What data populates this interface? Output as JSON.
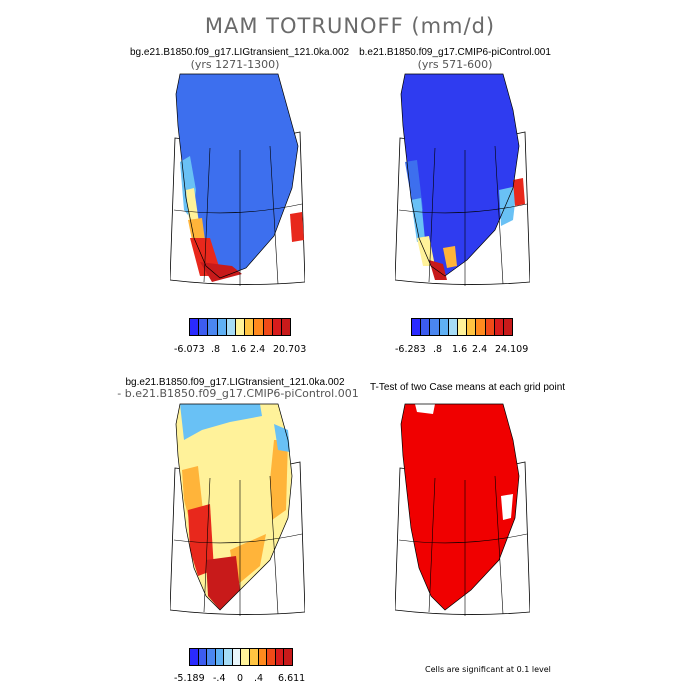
{
  "figure": {
    "title": "MAM TOTRUNOFF (mm/d)"
  },
  "panels": [
    {
      "id": "case1",
      "title": "bg.e21.B1850.f09_g17.LIGtransient_121.0ka.002",
      "subtitle": "(yrs 1271-1300)",
      "colorbar_labels": [
        "-6.073",
        ".8",
        "1.6",
        "2.4",
        "20.703"
      ],
      "colors": [
        "#2a2aff",
        "#3c5cf0",
        "#4a86f0",
        "#5fb0f4",
        "#a6dcf6",
        "#fff39a",
        "#ffc442",
        "#ff8a1e",
        "#f04a18",
        "#d81c1c",
        "#c81a1a"
      ]
    },
    {
      "id": "case2",
      "title": "b.e21.B1850.f09_g17.CMIP6-piControl.001",
      "subtitle": "(yrs 571-600)",
      "colorbar_labels": [
        "-6.283",
        ".8",
        "1.6",
        "2.4",
        "24.109"
      ],
      "colors": [
        "#2a2aff",
        "#3c5cf0",
        "#4a86f0",
        "#5fb0f4",
        "#a6dcf6",
        "#fff39a",
        "#ffc442",
        "#ff8a1e",
        "#f04a18",
        "#d81c1c",
        "#c81a1a"
      ]
    },
    {
      "id": "diff",
      "title": "bg.e21.B1850.f09_g17.LIGtransient_121.0ka.002",
      "subtitle": "- b.e21.B1850.f09_g17.CMIP6-piControl.001",
      "colorbar_labels": [
        "-5.189",
        "-.4",
        "0",
        ".4",
        "6.611"
      ],
      "colors": [
        "#2a2aff",
        "#3c5cf0",
        "#4a86f0",
        "#5fb0f4",
        "#a6dcf6",
        "#e8f6fb",
        "#fff39a",
        "#ffc442",
        "#ff8a1e",
        "#f04a18",
        "#d81c1c",
        "#c81a1a"
      ]
    },
    {
      "id": "ttest",
      "title": "T-Test of two Case means at each grid point",
      "footnote": "Cells are significant at 0.1 level"
    }
  ],
  "palette": {
    "blue": "#2f3cf0",
    "midblue": "#3d6fee",
    "cyan": "#69c1f5",
    "yellow": "#fff29a",
    "orange": "#ffb43a",
    "red": "#e8281c",
    "darkred": "#c81a1a",
    "significant": "#f00000"
  }
}
